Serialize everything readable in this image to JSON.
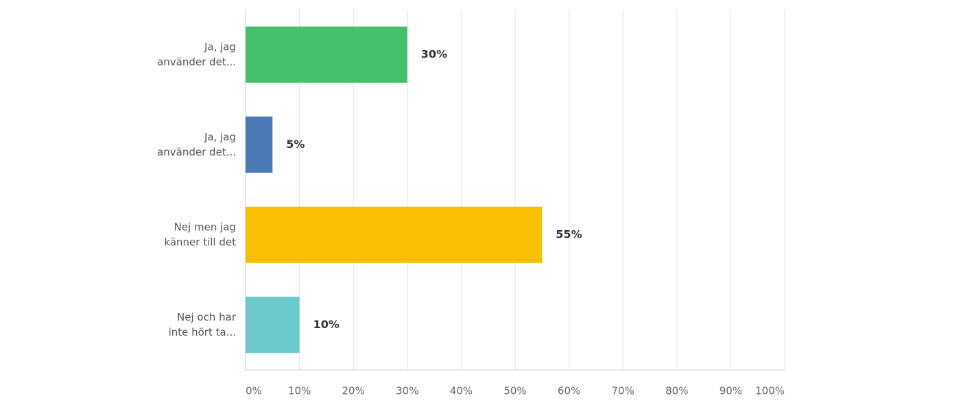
{
  "chart_data": {
    "type": "hbar",
    "categories": [
      [
        "Ja, jag",
        "använder det..."
      ],
      [
        "Ja, jag",
        "använder det..."
      ],
      [
        "Nej men jag",
        "känner till det"
      ],
      [
        "Nej och har",
        "inte hört ta..."
      ]
    ],
    "values": [
      30,
      5,
      55,
      10
    ],
    "value_labels": [
      "30%",
      "5%",
      "55%",
      "10%"
    ],
    "colors": [
      "#43c06c",
      "#4b78b6",
      "#f7bf00",
      "#6bc8cb"
    ],
    "xlim": [
      0,
      100
    ],
    "xticks": [
      {
        "value": 0,
        "label": "0%"
      },
      {
        "value": 10,
        "label": "10%"
      },
      {
        "value": 20,
        "label": "20%"
      },
      {
        "value": 30,
        "label": "30%"
      },
      {
        "value": 40,
        "label": "40%"
      },
      {
        "value": 50,
        "label": "50%"
      },
      {
        "value": 60,
        "label": "60%"
      },
      {
        "value": 70,
        "label": "70%"
      },
      {
        "value": 80,
        "label": "80%"
      },
      {
        "value": 90,
        "label": "90%"
      },
      {
        "value": 100,
        "label": "100%"
      }
    ],
    "grid": true
  }
}
